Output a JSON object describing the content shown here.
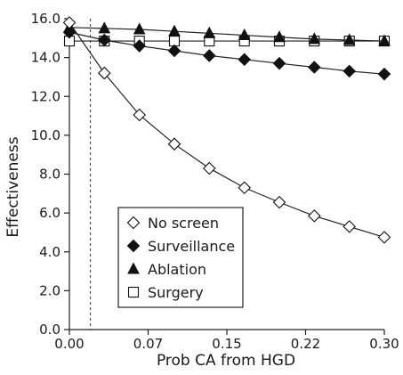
{
  "chart_data": {
    "type": "line",
    "xlabel": "Prob CA from HGD",
    "ylabel": "Effectiveness",
    "xlim": [
      0,
      0.3
    ],
    "ylim": [
      0,
      16
    ],
    "x_ticks": [
      0,
      0.075,
      0.15,
      0.225,
      0.3
    ],
    "x_tick_labels": [
      "0.00",
      "0.07",
      "0.15",
      "0.22",
      "0.30"
    ],
    "y_ticks": [
      0,
      2,
      4,
      6,
      8,
      10,
      12,
      14,
      16
    ],
    "y_tick_labels": [
      "0.0",
      "2.0",
      "4.0",
      "6.0",
      "8.0",
      "10.0",
      "12.0",
      "14.0",
      "16.0"
    ],
    "threshold_x": 0.02,
    "grid": false,
    "legend_position": "bottom-center",
    "x": [
      0,
      0.0333,
      0.0667,
      0.1,
      0.1333,
      0.1667,
      0.2,
      0.2333,
      0.2667,
      0.3
    ],
    "series": [
      {
        "name": "No screen",
        "marker": "diamond-open",
        "values": [
          15.8,
          13.2,
          11.05,
          9.55,
          8.3,
          7.3,
          6.55,
          5.85,
          5.3,
          4.75
        ]
      },
      {
        "name": "Surveillance",
        "marker": "diamond-filled",
        "values": [
          15.3,
          14.9,
          14.6,
          14.35,
          14.1,
          13.9,
          13.7,
          13.5,
          13.3,
          13.15
        ]
      },
      {
        "name": "Ablation",
        "marker": "triangle-filled",
        "values": [
          15.55,
          15.5,
          15.45,
          15.35,
          15.25,
          15.15,
          15.05,
          14.95,
          14.9,
          14.85
        ]
      },
      {
        "name": "Surgery",
        "marker": "square-open",
        "values": [
          14.85,
          14.85,
          14.85,
          14.85,
          14.85,
          14.85,
          14.85,
          14.85,
          14.85,
          14.85
        ]
      }
    ]
  }
}
